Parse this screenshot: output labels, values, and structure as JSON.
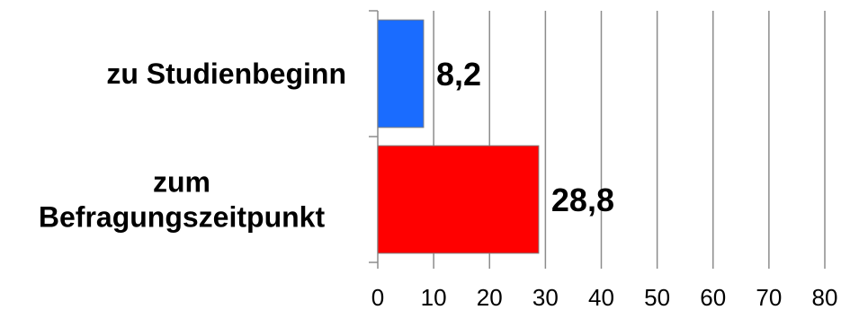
{
  "chart_data": {
    "type": "bar",
    "orientation": "horizontal",
    "categories": [
      [
        "zu Studienbeginn"
      ],
      [
        "zum",
        "Befragungszeitpunkt"
      ]
    ],
    "values": [
      8.2,
      28.8
    ],
    "value_labels": [
      "8,2",
      "28,8"
    ],
    "colors": [
      "#1a6cff",
      "#ff0000"
    ],
    "xlim": [
      0,
      80
    ],
    "xticks": [
      0,
      10,
      20,
      30,
      40,
      50,
      60,
      70,
      80
    ],
    "grid": true,
    "title": "",
    "xlabel": "",
    "ylabel": ""
  }
}
